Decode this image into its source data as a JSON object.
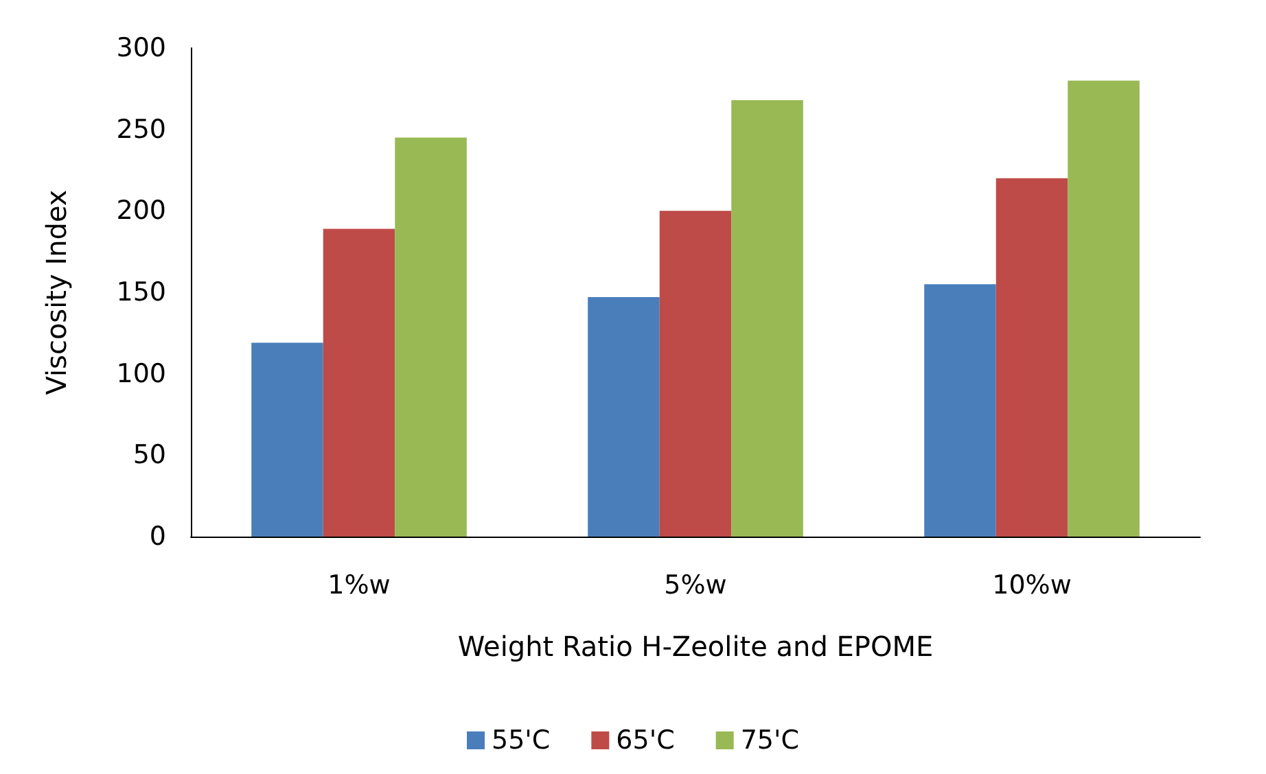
{
  "chart_data": {
    "type": "bar",
    "xlabel": "Weight Ratio H-Zeolite and EPOME",
    "ylabel": "Viscosity Index",
    "categories": [
      "1%w",
      "5%w",
      "10%w"
    ],
    "series": [
      {
        "name": "55'C",
        "color": "#4a7ebb",
        "values": [
          119,
          147,
          155
        ]
      },
      {
        "name": "65'C",
        "color": "#be4b48",
        "values": [
          189,
          200,
          220
        ]
      },
      {
        "name": "75'C",
        "color": "#98b954",
        "values": [
          245,
          268,
          280
        ]
      }
    ],
    "ylim": [
      0,
      300
    ],
    "yticks": [
      0,
      50,
      100,
      150,
      200,
      250,
      300
    ],
    "grid": false,
    "legend": "bottom"
  }
}
